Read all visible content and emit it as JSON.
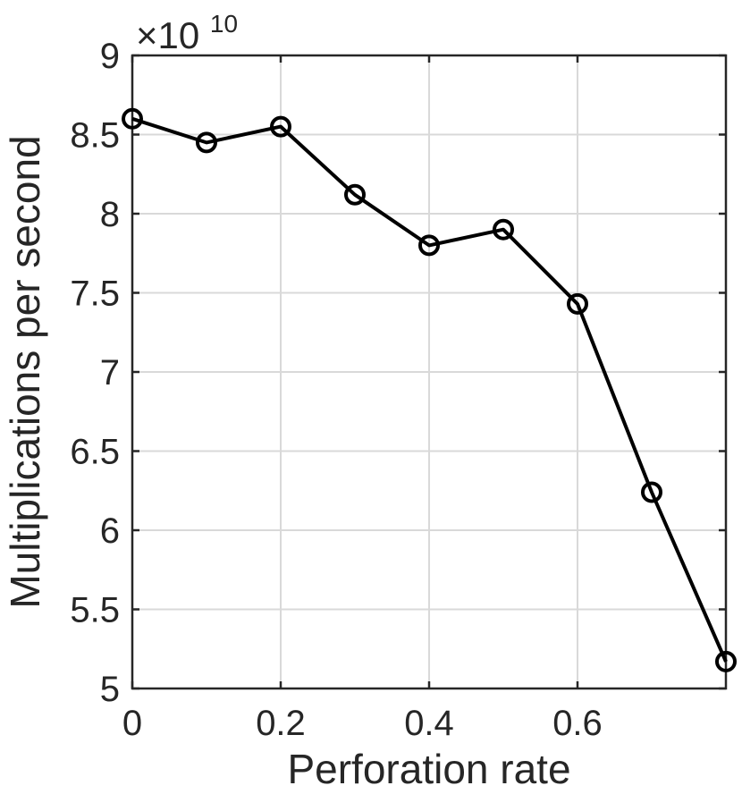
{
  "chart_data": {
    "type": "line",
    "title": "",
    "xlabel": "Perforation rate",
    "ylabel": "Multiplications per second",
    "y_exponent_label": {
      "prefix": "×10",
      "power": "10"
    },
    "xlim": [
      0,
      0.8
    ],
    "ylim": [
      5,
      9
    ],
    "x_ticks": [
      0,
      0.2,
      0.4,
      0.6
    ],
    "x_tick_labels": [
      "0",
      "0.2",
      "0.4",
      "0.6"
    ],
    "y_ticks": [
      5,
      5.5,
      6,
      6.5,
      7,
      7.5,
      8,
      8.5,
      9
    ],
    "y_tick_labels": [
      "5",
      "5.5",
      "6",
      "6.5",
      "7",
      "7.5",
      "8",
      "8.5",
      "9"
    ],
    "grid": true,
    "series": [
      {
        "marker": "circle",
        "color": "#000000",
        "x": [
          0,
          0.1,
          0.2,
          0.3,
          0.4,
          0.5,
          0.6,
          0.7,
          0.8
        ],
        "y": [
          8.6,
          8.45,
          8.55,
          8.12,
          7.8,
          7.9,
          7.43,
          6.24,
          5.17
        ]
      }
    ]
  }
}
